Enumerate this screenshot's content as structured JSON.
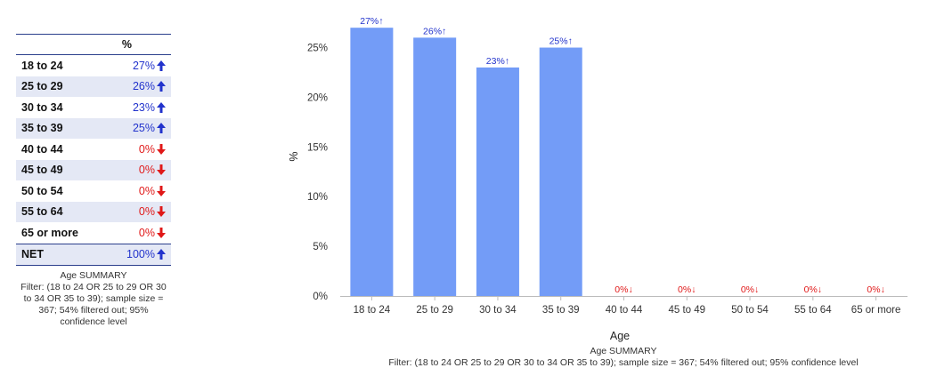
{
  "table": {
    "header": "%",
    "rows": [
      {
        "label": "18 to 24",
        "value": "27%",
        "dir": "up"
      },
      {
        "label": "25 to 29",
        "value": "26%",
        "dir": "up"
      },
      {
        "label": "30 to 34",
        "value": "23%",
        "dir": "up"
      },
      {
        "label": "35 to 39",
        "value": "25%",
        "dir": "up"
      },
      {
        "label": "40 to 44",
        "value": "0%",
        "dir": "down"
      },
      {
        "label": "45 to 49",
        "value": "0%",
        "dir": "down"
      },
      {
        "label": "50 to 54",
        "value": "0%",
        "dir": "down"
      },
      {
        "label": "55 to 64",
        "value": "0%",
        "dir": "down"
      },
      {
        "label": "65 or more",
        "value": "0%",
        "dir": "down"
      },
      {
        "label": "NET",
        "value": "100%",
        "dir": "up"
      }
    ],
    "caption_title": "Age SUMMARY",
    "caption_filter": "Filter: (18 to 24 OR 25 to 29 OR 30 to 34 OR 35 to 39); sample size = 367; 54% filtered out; 95% confidence level"
  },
  "colors": {
    "bar": "#739cf7",
    "up": "#2233cc",
    "down": "#e01818",
    "axis": "#bbbbbb"
  },
  "chart_data": {
    "type": "bar",
    "categories": [
      "18 to 24",
      "25 to 29",
      "30 to 34",
      "35 to 39",
      "40 to 44",
      "45 to 49",
      "50 to 54",
      "55 to 64",
      "65 or more"
    ],
    "values": [
      27,
      26,
      23,
      25,
      0,
      0,
      0,
      0,
      0
    ],
    "data_labels": [
      "27%↑",
      "26%↑",
      "23%↑",
      "25%↑",
      "0%↓",
      "0%↓",
      "0%↓",
      "0%↓",
      "0%↓"
    ],
    "label_dirs": [
      "up",
      "up",
      "up",
      "up",
      "down",
      "down",
      "down",
      "down",
      "down"
    ],
    "ylim": [
      0,
      28
    ],
    "yticks": [
      0,
      5,
      10,
      15,
      20,
      25
    ],
    "ytick_labels": [
      "0%",
      "5%",
      "10%",
      "15%",
      "20%",
      "25%"
    ],
    "xlabel": "Age",
    "ylabel": "%",
    "grid": false,
    "caption_title": "Age SUMMARY",
    "caption_filter": "Filter: (18 to 24 OR 25 to 29 OR 30 to 34 OR 35 to 39); sample size = 367; 54% filtered out; 95% confidence level"
  }
}
